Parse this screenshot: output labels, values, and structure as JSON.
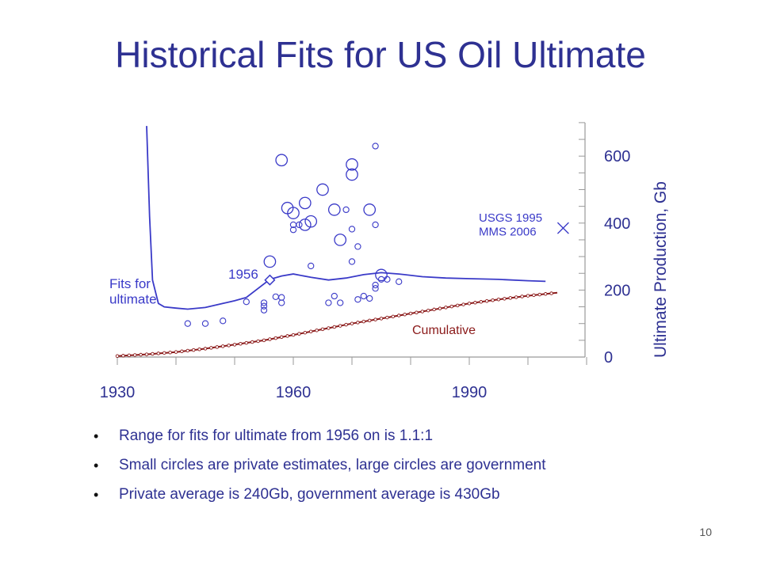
{
  "slide": {
    "title": "Historical Fits for US Oil Ultimate",
    "page_number": "10",
    "bullets": [
      "Range for fits for ultimate from 1956 on is 1.1:1",
      "Small circles are private estimates, large circles are government",
      "Private average is 240Gb, government average is 430Gb"
    ]
  },
  "colors": {
    "blue": "#3a3ac8",
    "cumulative": "#8b1a1a",
    "axis": "#999999",
    "title": "#2e3192"
  },
  "chart_data": {
    "type": "scatter",
    "title": "",
    "xlabel": "",
    "ylabel": "Ultimate Production, Gb",
    "xlim": [
      1930,
      2010
    ],
    "ylim": [
      0,
      700
    ],
    "x_ticks": [
      1930,
      1960,
      1990
    ],
    "y_ticks": [
      0,
      200,
      400,
      600
    ],
    "annotations": {
      "fits": "Fits for\nultimate",
      "year_1956": "1956",
      "usgs": "USGS 1995\nMMS 2006",
      "cumulative": "Cumulative"
    },
    "series": [
      {
        "kind": "line",
        "x": [
          1935.0,
          1935.5,
          1936,
          1937,
          1938,
          1940,
          1942,
          1945,
          1948,
          1950,
          1952,
          1954,
          1956,
          1958,
          1960,
          1963,
          1966,
          1969,
          1972,
          1975,
          1978,
          1982,
          1986,
          1990,
          1995,
          2000,
          2003
        ],
        "y": [
          690,
          420,
          230,
          160,
          150,
          146,
          143,
          148,
          160,
          168,
          178,
          205,
          232,
          242,
          248,
          238,
          230,
          236,
          246,
          252,
          248,
          240,
          236,
          234,
          232,
          228,
          226
        ]
      },
      {
        "kind": "cumulative",
        "x": [
          1930,
          1935,
          1940,
          1945,
          1950,
          1955,
          1960,
          1965,
          1970,
          1975,
          1980,
          1985,
          1990,
          1995,
          2000,
          2005
        ],
        "y": [
          3,
          8,
          15,
          25,
          37,
          50,
          66,
          83,
          100,
          115,
          130,
          145,
          160,
          172,
          183,
          192
        ]
      },
      {
        "kind": "small_circles",
        "points": [
          [
            1942,
            100
          ],
          [
            1945,
            100
          ],
          [
            1948,
            108
          ],
          [
            1952,
            165
          ],
          [
            1955,
            140
          ],
          [
            1955,
            152
          ],
          [
            1955,
            162
          ],
          [
            1957,
            180
          ],
          [
            1958,
            162
          ],
          [
            1958,
            178
          ],
          [
            1960,
            380
          ],
          [
            1961,
            395
          ],
          [
            1960,
            395
          ],
          [
            1963,
            272
          ],
          [
            1966,
            162
          ],
          [
            1967,
            182
          ],
          [
            1968,
            162
          ],
          [
            1969,
            440
          ],
          [
            1970,
            285
          ],
          [
            1970,
            382
          ],
          [
            1971,
            330
          ],
          [
            1971,
            172
          ],
          [
            1972,
            182
          ],
          [
            1973,
            175
          ],
          [
            1974,
            215
          ],
          [
            1974,
            205
          ],
          [
            1974,
            395
          ],
          [
            1974,
            630
          ],
          [
            1975,
            232
          ],
          [
            1976,
            232
          ],
          [
            1978,
            225
          ]
        ]
      },
      {
        "kind": "large_circles",
        "points": [
          [
            1956,
            285
          ],
          [
            1958,
            588
          ],
          [
            1959,
            445
          ],
          [
            1960,
            430
          ],
          [
            1962,
            395
          ],
          [
            1963,
            405
          ],
          [
            1962,
            460
          ],
          [
            1965,
            500
          ],
          [
            1967,
            440
          ],
          [
            1968,
            350
          ],
          [
            1970,
            575
          ],
          [
            1970,
            545
          ],
          [
            1973,
            440
          ],
          [
            1975,
            245
          ]
        ]
      },
      {
        "kind": "marker_1956",
        "x": 1956,
        "y": 230
      },
      {
        "kind": "x_marker_2006",
        "x": 2006,
        "y": 385
      }
    ]
  }
}
